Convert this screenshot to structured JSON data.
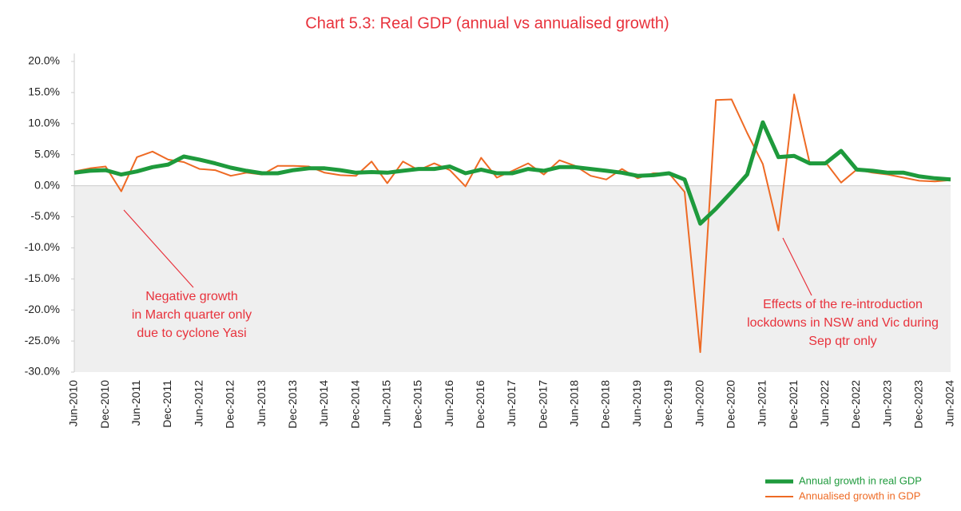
{
  "chart_data": {
    "type": "line",
    "title": "Chart 5.3:  Real GDP (annual vs annualised growth)",
    "categories": [
      "Jun-2010",
      null,
      "Dec-2010",
      null,
      "Jun-2011",
      null,
      "Dec-2011",
      null,
      "Jun-2012",
      null,
      "Dec-2012",
      null,
      "Jun-2013",
      null,
      "Dec-2013",
      null,
      "Jun-2014",
      null,
      "Dec-2014",
      null,
      "Jun-2015",
      null,
      "Dec-2015",
      null,
      "Jun-2016",
      null,
      "Dec-2016",
      null,
      "Jun-2017",
      null,
      "Dec-2017",
      null,
      "Jun-2018",
      null,
      "Dec-2018",
      null,
      "Jun-2019",
      null,
      "Dec-2019",
      null,
      "Jun-2020",
      null,
      "Dec-2020",
      null,
      "Jun-2021",
      null,
      "Dec-2021",
      null,
      "Jun-2022",
      null,
      "Dec-2022",
      null,
      "Jun-2023",
      null,
      "Dec-2023",
      null,
      "Jun-2024"
    ],
    "series": [
      {
        "name": "Annual growth in real GDP",
        "color": "#1e9a3c",
        "values": [
          2.1,
          2.4,
          2.5,
          1.8,
          2.3,
          3.0,
          3.4,
          4.7,
          4.2,
          3.6,
          2.9,
          2.4,
          2.0,
          2.0,
          2.5,
          2.8,
          2.8,
          2.5,
          2.1,
          2.2,
          2.1,
          2.4,
          2.7,
          2.7,
          3.1,
          2.0,
          2.6,
          2.0,
          2.0,
          2.7,
          2.4,
          3.0,
          3.0,
          2.7,
          2.4,
          2.1,
          1.6,
          1.7,
          2.0,
          1.0,
          -6.1,
          -3.7,
          -1.0,
          1.8,
          10.2,
          4.6,
          4.8,
          3.6,
          3.6,
          5.6,
          2.6,
          2.4,
          2.1,
          2.1,
          1.5,
          1.2,
          1.0
        ]
      },
      {
        "name": "Annualised growth in GDP",
        "color": "#ee6a24",
        "values": [
          2.3,
          2.8,
          3.1,
          -0.9,
          4.6,
          5.5,
          4.2,
          3.8,
          2.7,
          2.5,
          1.6,
          2.1,
          1.8,
          3.2,
          3.2,
          3.1,
          2.1,
          1.7,
          1.6,
          3.9,
          0.4,
          3.9,
          2.5,
          3.6,
          2.5,
          -0.1,
          4.5,
          1.3,
          2.4,
          3.6,
          1.8,
          4.1,
          3.2,
          1.6,
          1.0,
          2.7,
          1.2,
          2.0,
          2.0,
          -1.0,
          -26.8,
          13.8,
          13.9,
          8.5,
          3.5,
          -7.2,
          14.7,
          3.6,
          3.8,
          0.5,
          2.6,
          2.1,
          1.8,
          1.3,
          0.8,
          0.7,
          0.9
        ]
      }
    ],
    "ylim": [
      -30,
      20
    ],
    "yticks": [
      {
        "value": 20,
        "label": "20.0%"
      },
      {
        "value": 15,
        "label": "15.0%"
      },
      {
        "value": 10,
        "label": "10.0%"
      },
      {
        "value": 5,
        "label": "5.0%"
      },
      {
        "value": 0,
        "label": "0.0%"
      },
      {
        "value": -5,
        "label": "-5.0%"
      },
      {
        "value": -10,
        "label": "-10.0%"
      },
      {
        "value": -15,
        "label": "-15.0%"
      },
      {
        "value": -20,
        "label": "-20.0%"
      },
      {
        "value": -25,
        "label": "-25.0%"
      },
      {
        "value": -30,
        "label": "-30.0%"
      }
    ],
    "annotations": [
      {
        "lines": [
          "Negative growth",
          "in March quarter only",
          "due to cyclone Yasi"
        ]
      },
      {
        "lines": [
          "Effects of the re-introduction",
          "lockdowns in NSW and Vic during",
          "Sep qtr only"
        ]
      }
    ],
    "legend": "bottom-right"
  }
}
